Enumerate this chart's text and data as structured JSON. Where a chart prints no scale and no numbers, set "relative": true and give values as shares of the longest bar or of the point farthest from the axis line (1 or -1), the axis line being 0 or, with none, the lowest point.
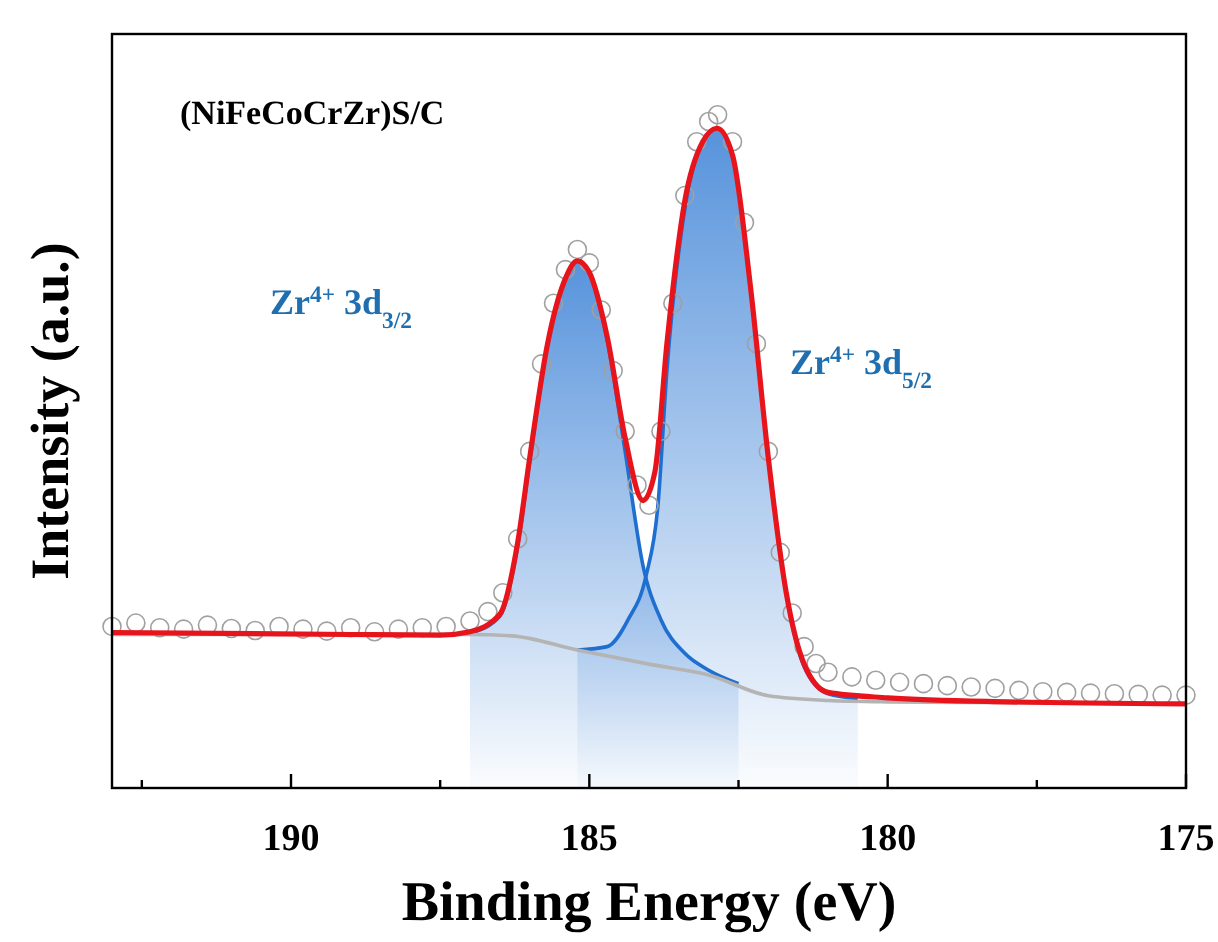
{
  "chart_data": {
    "type": "line",
    "title": "(NiFeCoCrZr)S/C",
    "xlabel": "Binding Energy (eV)",
    "ylabel": "Intensity (a.u.)",
    "relative": true,
    "xlim": [
      193,
      175
    ],
    "xticks": [
      {
        "value": 192.5,
        "label": null
      },
      190,
      {
        "value": 187.5,
        "label": null
      },
      185,
      {
        "value": 182.5,
        "label": null
      },
      180,
      {
        "value": 177.5,
        "label": null
      },
      175
    ],
    "grid": false,
    "annotations": [
      "Zr$^{4+}$ 3d$_{3/2}$",
      "Zr$^{4+}$ 3d$_{5/2}$"
    ],
    "series": [
      {
        "type": "area",
        "color": "#1f6fd0",
        "x": [
          187,
          186.5,
          186.2,
          186.0,
          185.7,
          185.4,
          185.2,
          185.0,
          184.7,
          184.4,
          184.1,
          183.8,
          183.4,
          183.0,
          182.5
        ],
        "values": [
          0.23,
          0.255,
          0.36,
          0.485,
          0.66,
          0.757,
          0.783,
          0.766,
          0.665,
          0.5,
          0.33,
          0.25,
          0.2,
          0.175,
          0.155
        ]
      },
      {
        "type": "area",
        "color": "#1f6fd0",
        "x": [
          185.2,
          184.7,
          184.35,
          184.05,
          183.85,
          183.7,
          183.4,
          183.1,
          182.86,
          182.6,
          182.3,
          182.0,
          181.7,
          181.4,
          181.0,
          180.5
        ],
        "values": [
          0.205,
          0.21,
          0.25,
          0.315,
          0.42,
          0.62,
          0.86,
          0.96,
          0.98,
          0.94,
          0.745,
          0.49,
          0.29,
          0.18,
          0.14,
          0.133
        ]
      },
      {
        "color": "#b4b4b4",
        "x": [
          193,
          189,
          187,
          186.3,
          185.2,
          184,
          183,
          182,
          181,
          180,
          175
        ],
        "values": [
          0.228,
          0.228,
          0.228,
          0.226,
          0.205,
          0.184,
          0.168,
          0.137,
          0.13,
          0.128,
          0.125
        ]
      },
      {
        "type": "scatter",
        "marker": "circle",
        "color": "#a0a0a0",
        "x": [
          193,
          192.6,
          192.2,
          191.8,
          191.4,
          191.0,
          190.6,
          190.2,
          189.8,
          189.4,
          189.0,
          188.6,
          188.2,
          187.8,
          187.4,
          187.0,
          186.7,
          186.45,
          186.2,
          186.0,
          185.8,
          185.6,
          185.4,
          185.2,
          185.0,
          184.8,
          184.6,
          184.4,
          184.2,
          184.0,
          183.8,
          183.6,
          183.4,
          183.2,
          183.0,
          182.85,
          182.6,
          182.4,
          182.2,
          182.0,
          181.8,
          181.6,
          181.4,
          181.2,
          181.0,
          180.6,
          180.2,
          179.8,
          179.4,
          179.0,
          178.6,
          178.2,
          177.8,
          177.4,
          177.0,
          176.6,
          176.2,
          175.8,
          175.4,
          175.0
        ],
        "values": [
          0.24,
          0.245,
          0.238,
          0.236,
          0.242,
          0.237,
          0.234,
          0.24,
          0.236,
          0.233,
          0.238,
          0.232,
          0.236,
          0.238,
          0.24,
          0.248,
          0.262,
          0.29,
          0.37,
          0.5,
          0.63,
          0.72,
          0.77,
          0.8,
          0.78,
          0.71,
          0.62,
          0.53,
          0.45,
          0.42,
          0.53,
          0.72,
          0.88,
          0.96,
          0.99,
          1.0,
          0.96,
          0.84,
          0.66,
          0.5,
          0.35,
          0.26,
          0.21,
          0.185,
          0.172,
          0.165,
          0.16,
          0.157,
          0.155,
          0.152,
          0.15,
          0.148,
          0.145,
          0.143,
          0.142,
          0.141,
          0.14,
          0.139,
          0.138,
          0.138
        ]
      },
      {
        "color": "#e8141c",
        "x": [
          193,
          189,
          187.5,
          187,
          186.5,
          186.2,
          186.0,
          185.7,
          185.4,
          185.2,
          185.0,
          184.7,
          184.4,
          184.1,
          183.9,
          183.7,
          183.4,
          183.1,
          182.86,
          182.6,
          182.3,
          182.0,
          181.7,
          181.4,
          181.0,
          180.0,
          178,
          175
        ],
        "values": [
          0.231,
          0.228,
          0.227,
          0.232,
          0.258,
          0.365,
          0.49,
          0.66,
          0.757,
          0.783,
          0.766,
          0.67,
          0.52,
          0.427,
          0.47,
          0.66,
          0.872,
          0.96,
          0.98,
          0.94,
          0.745,
          0.49,
          0.29,
          0.184,
          0.142,
          0.134,
          0.128,
          0.125
        ]
      }
    ]
  }
}
